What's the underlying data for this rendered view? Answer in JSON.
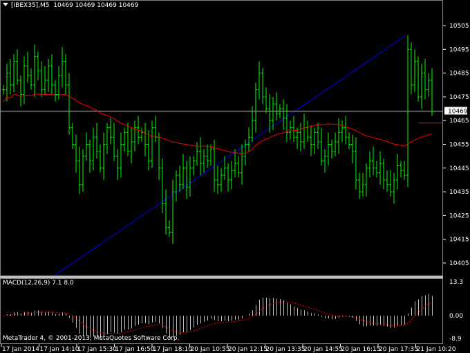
{
  "header": {
    "symbol": "[IBEX35],M5",
    "ohlc": "10469 10469 10469 10469"
  },
  "indicator": {
    "label": "MACD(12,26,9) 7.1 8.0",
    "scale_labels": [
      "13.3",
      "0.00",
      "-8.9"
    ]
  },
  "copyright": "MetaTrader 4, © 2001-2013, MetaQuotes Software Corp.",
  "price_axis": [
    "10505",
    "10495",
    "10485",
    "10475",
    "10465",
    "10455",
    "10445",
    "10435",
    "10425",
    "10415",
    "10405"
  ],
  "current_price": "10469",
  "time_axis": [
    "17 Jan 2014",
    "17 Jan 14:10",
    "17 Jan 15:30",
    "17 Jan 16:50",
    "17 Jan 18:10",
    "20 Jan 10:55",
    "20 Jan 12:15",
    "20 Jan 13:35",
    "20 Jan 14:55",
    "20 Jan 16:15",
    "20 Jan 17:35",
    "21 Jan 10:20"
  ],
  "colors": {
    "bars": "#00ff00",
    "ma": "#ff0000",
    "trendline": "#0000ff",
    "bid_line": "#c0c0c0",
    "macd_hist": "#c0c0c0",
    "macd_signal": "#ff0000"
  },
  "chart_data": {
    "type": "bar",
    "ylim": [
      10400,
      10510
    ],
    "macd_ylim": [
      -8.9,
      13.3
    ],
    "level_line": 10464,
    "trendline": [
      10400,
      10500.5
    ],
    "closes": [
      10478,
      10485,
      10480,
      10490,
      10482,
      10476,
      10488,
      10484,
      10480,
      10492,
      10486,
      10478,
      10482,
      10488,
      10480,
      10476,
      10484,
      10490,
      10480,
      10462,
      10455,
      10448,
      10438,
      10450,
      10455,
      10448,
      10458,
      10452,
      10445,
      10455,
      10462,
      10458,
      10450,
      10445,
      10455,
      10460,
      10452,
      10456,
      10462,
      10458,
      10460,
      10455,
      10448,
      10462,
      10458,
      10445,
      10430,
      10420,
      10418,
      10435,
      10442,
      10438,
      10445,
      10437,
      10445,
      10448,
      10452,
      10447,
      10450,
      10448,
      10453,
      10440,
      10438,
      10442,
      10445,
      10440,
      10444,
      10447,
      10443,
      10450,
      10455,
      10458,
      10465,
      10478,
      10485,
      10475,
      10470,
      10465,
      10472,
      10468,
      10470,
      10466,
      10460,
      10462,
      10458,
      10460,
      10456,
      10462,
      10458,
      10455,
      10460,
      10456,
      10448,
      10450,
      10455,
      10452,
      10456,
      10460,
      10462,
      10458,
      10455,
      10452,
      10440,
      10435,
      10438,
      10445,
      10448,
      10445,
      10443,
      10447,
      10440,
      10438,
      10435,
      10440,
      10446,
      10444,
      10442,
      10495,
      10480,
      10490,
      10475,
      10485,
      10478,
      10482,
      10469
    ]
  }
}
